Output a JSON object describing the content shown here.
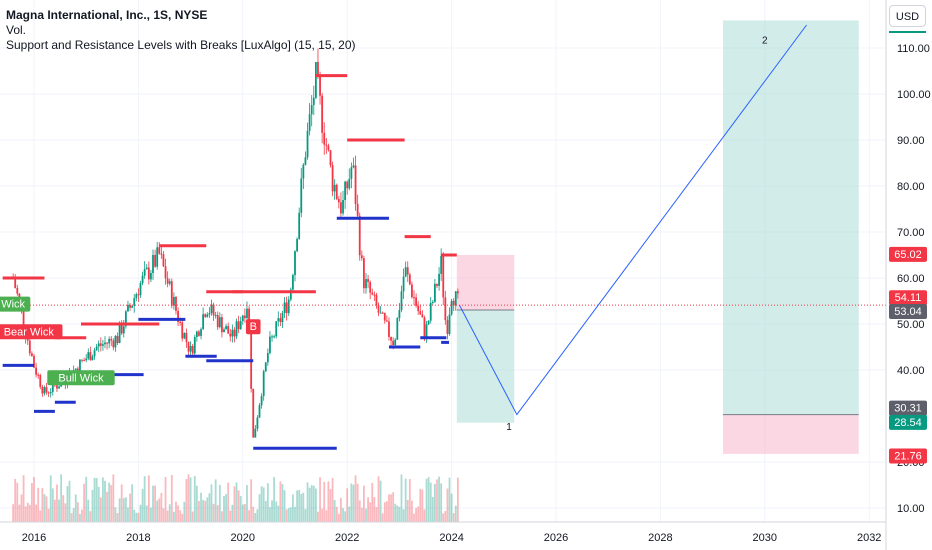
{
  "legend": {
    "title": "Magna International, Inc., 1S, NYSE",
    "volume": "Vol.",
    "indicator": "Support and Resistance Levels with Breaks [LuxAlgo] (15, 15, 20)"
  },
  "currency": "USD",
  "colors": {
    "resistance": "#f23645",
    "support": "#2034cc",
    "candle_up": "#089981",
    "candle_down": "#f23645",
    "projection_line": "#2962ff",
    "profit_zone": "#b2dfdb",
    "loss_zone": "#f8bbd0",
    "grid": "#f0f3fa"
  },
  "chart_data": {
    "type": "candlestick",
    "x_ticks": [
      "2016",
      "2018",
      "2020",
      "2022",
      "2024",
      "2026",
      "2028",
      "2030",
      "2032"
    ],
    "y_ticks": [
      "110.00",
      "100.00",
      "90.00",
      "80.00",
      "70.00",
      "60.00",
      "50.00",
      "40.00",
      "20.00",
      "10.00"
    ],
    "y_range": [
      5,
      117
    ],
    "price_path": [
      {
        "t": 2015.6,
        "p": 60
      },
      {
        "t": 2016.0,
        "p": 41
      },
      {
        "t": 2016.2,
        "p": 35
      },
      {
        "t": 2016.6,
        "p": 38
      },
      {
        "t": 2017.2,
        "p": 45
      },
      {
        "t": 2017.6,
        "p": 47
      },
      {
        "t": 2018.0,
        "p": 58
      },
      {
        "t": 2018.4,
        "p": 65
      },
      {
        "t": 2018.8,
        "p": 50
      },
      {
        "t": 2019.0,
        "p": 44
      },
      {
        "t": 2019.3,
        "p": 54
      },
      {
        "t": 2019.8,
        "p": 47
      },
      {
        "t": 2020.1,
        "p": 55
      },
      {
        "t": 2020.2,
        "p": 25
      },
      {
        "t": 2020.5,
        "p": 45
      },
      {
        "t": 2020.9,
        "p": 56
      },
      {
        "t": 2021.2,
        "p": 88
      },
      {
        "t": 2021.4,
        "p": 103
      },
      {
        "t": 2021.7,
        "p": 82
      },
      {
        "t": 2021.9,
        "p": 75
      },
      {
        "t": 2022.1,
        "p": 85
      },
      {
        "t": 2022.3,
        "p": 60
      },
      {
        "t": 2022.7,
        "p": 50
      },
      {
        "t": 2022.9,
        "p": 46
      },
      {
        "t": 2023.1,
        "p": 62
      },
      {
        "t": 2023.5,
        "p": 48
      },
      {
        "t": 2023.8,
        "p": 63
      },
      {
        "t": 2023.9,
        "p": 48
      },
      {
        "t": 2024.0,
        "p": 57
      },
      {
        "t": 2024.15,
        "p": 54
      }
    ],
    "resistance_levels": [
      {
        "from": 2015.4,
        "to": 2016.2,
        "price": 60
      },
      {
        "from": 2016.4,
        "to": 2017.0,
        "price": 47
      },
      {
        "from": 2016.9,
        "to": 2018.4,
        "price": 50
      },
      {
        "from": 2018.4,
        "to": 2019.3,
        "price": 67
      },
      {
        "from": 2019.3,
        "to": 2020.0,
        "price": 57
      },
      {
        "from": 2019.8,
        "to": 2021.4,
        "price": 57
      },
      {
        "from": 2021.4,
        "to": 2022.0,
        "price": 104
      },
      {
        "from": 2022.0,
        "to": 2023.1,
        "price": 90
      },
      {
        "from": 2023.1,
        "to": 2023.6,
        "price": 69
      },
      {
        "from": 2023.8,
        "to": 2024.1,
        "price": 65
      }
    ],
    "support_levels": [
      {
        "from": 2015.4,
        "to": 2016.0,
        "price": 41
      },
      {
        "from": 2016.0,
        "to": 2016.4,
        "price": 31
      },
      {
        "from": 2016.4,
        "to": 2016.8,
        "price": 33
      },
      {
        "from": 2016.8,
        "to": 2018.1,
        "price": 39
      },
      {
        "from": 2018.0,
        "to": 2018.9,
        "price": 51
      },
      {
        "from": 2018.9,
        "to": 2019.5,
        "price": 43
      },
      {
        "from": 2019.3,
        "to": 2020.2,
        "price": 42
      },
      {
        "from": 2020.2,
        "to": 2021.8,
        "price": 23
      },
      {
        "from": 2021.8,
        "to": 2022.8,
        "price": 73
      },
      {
        "from": 2022.8,
        "to": 2023.4,
        "price": 45
      },
      {
        "from": 2023.4,
        "to": 2023.9,
        "price": 47
      },
      {
        "from": 2023.8,
        "to": 2023.95,
        "price": 46
      }
    ],
    "labels": [
      {
        "text": "Wick",
        "t": 2015.6,
        "price": 54.2,
        "kind": "bull"
      },
      {
        "text": "Bear Wick",
        "t": 2015.9,
        "price": 48.2,
        "kind": "bear"
      },
      {
        "text": "Bull Wick",
        "t": 2016.9,
        "price": 38.2,
        "kind": "bull"
      },
      {
        "text": "B",
        "t": 2020.2,
        "price": 49.3,
        "kind": "bear"
      }
    ],
    "projection": [
      {
        "t": 2024.15,
        "p": 54.11
      },
      {
        "t": 2025.25,
        "p": 30.31
      },
      {
        "t": 2030.8,
        "p": 115
      }
    ],
    "projection_labels": [
      {
        "text": "1",
        "t": 2025.1,
        "price": 27
      },
      {
        "text": "2",
        "t": 2030.0,
        "price": 111
      }
    ],
    "position_boxes": [
      {
        "from": 2024.1,
        "to": 2025.2,
        "entry": 53.04,
        "target": 28.54,
        "stop": 65.02
      },
      {
        "from": 2029.2,
        "to": 2031.8,
        "entry": 30.31,
        "target": 116,
        "stop": 21.76
      }
    ],
    "price_tags": [
      {
        "text": "65.02",
        "price": 65.02,
        "color": "#f23645"
      },
      {
        "text": "54.11",
        "price": 55.6,
        "color": "#f23645"
      },
      {
        "text": "53.04",
        "price": 52.6,
        "color": "#5d606b"
      },
      {
        "text": "30.31",
        "price": 31.6,
        "color": "#5d606b"
      },
      {
        "text": "28.54",
        "price": 28.5,
        "color": "#089981"
      },
      {
        "text": "21.76",
        "price": 21.2,
        "color": "#f23645"
      }
    ],
    "current_price": 54.11
  }
}
